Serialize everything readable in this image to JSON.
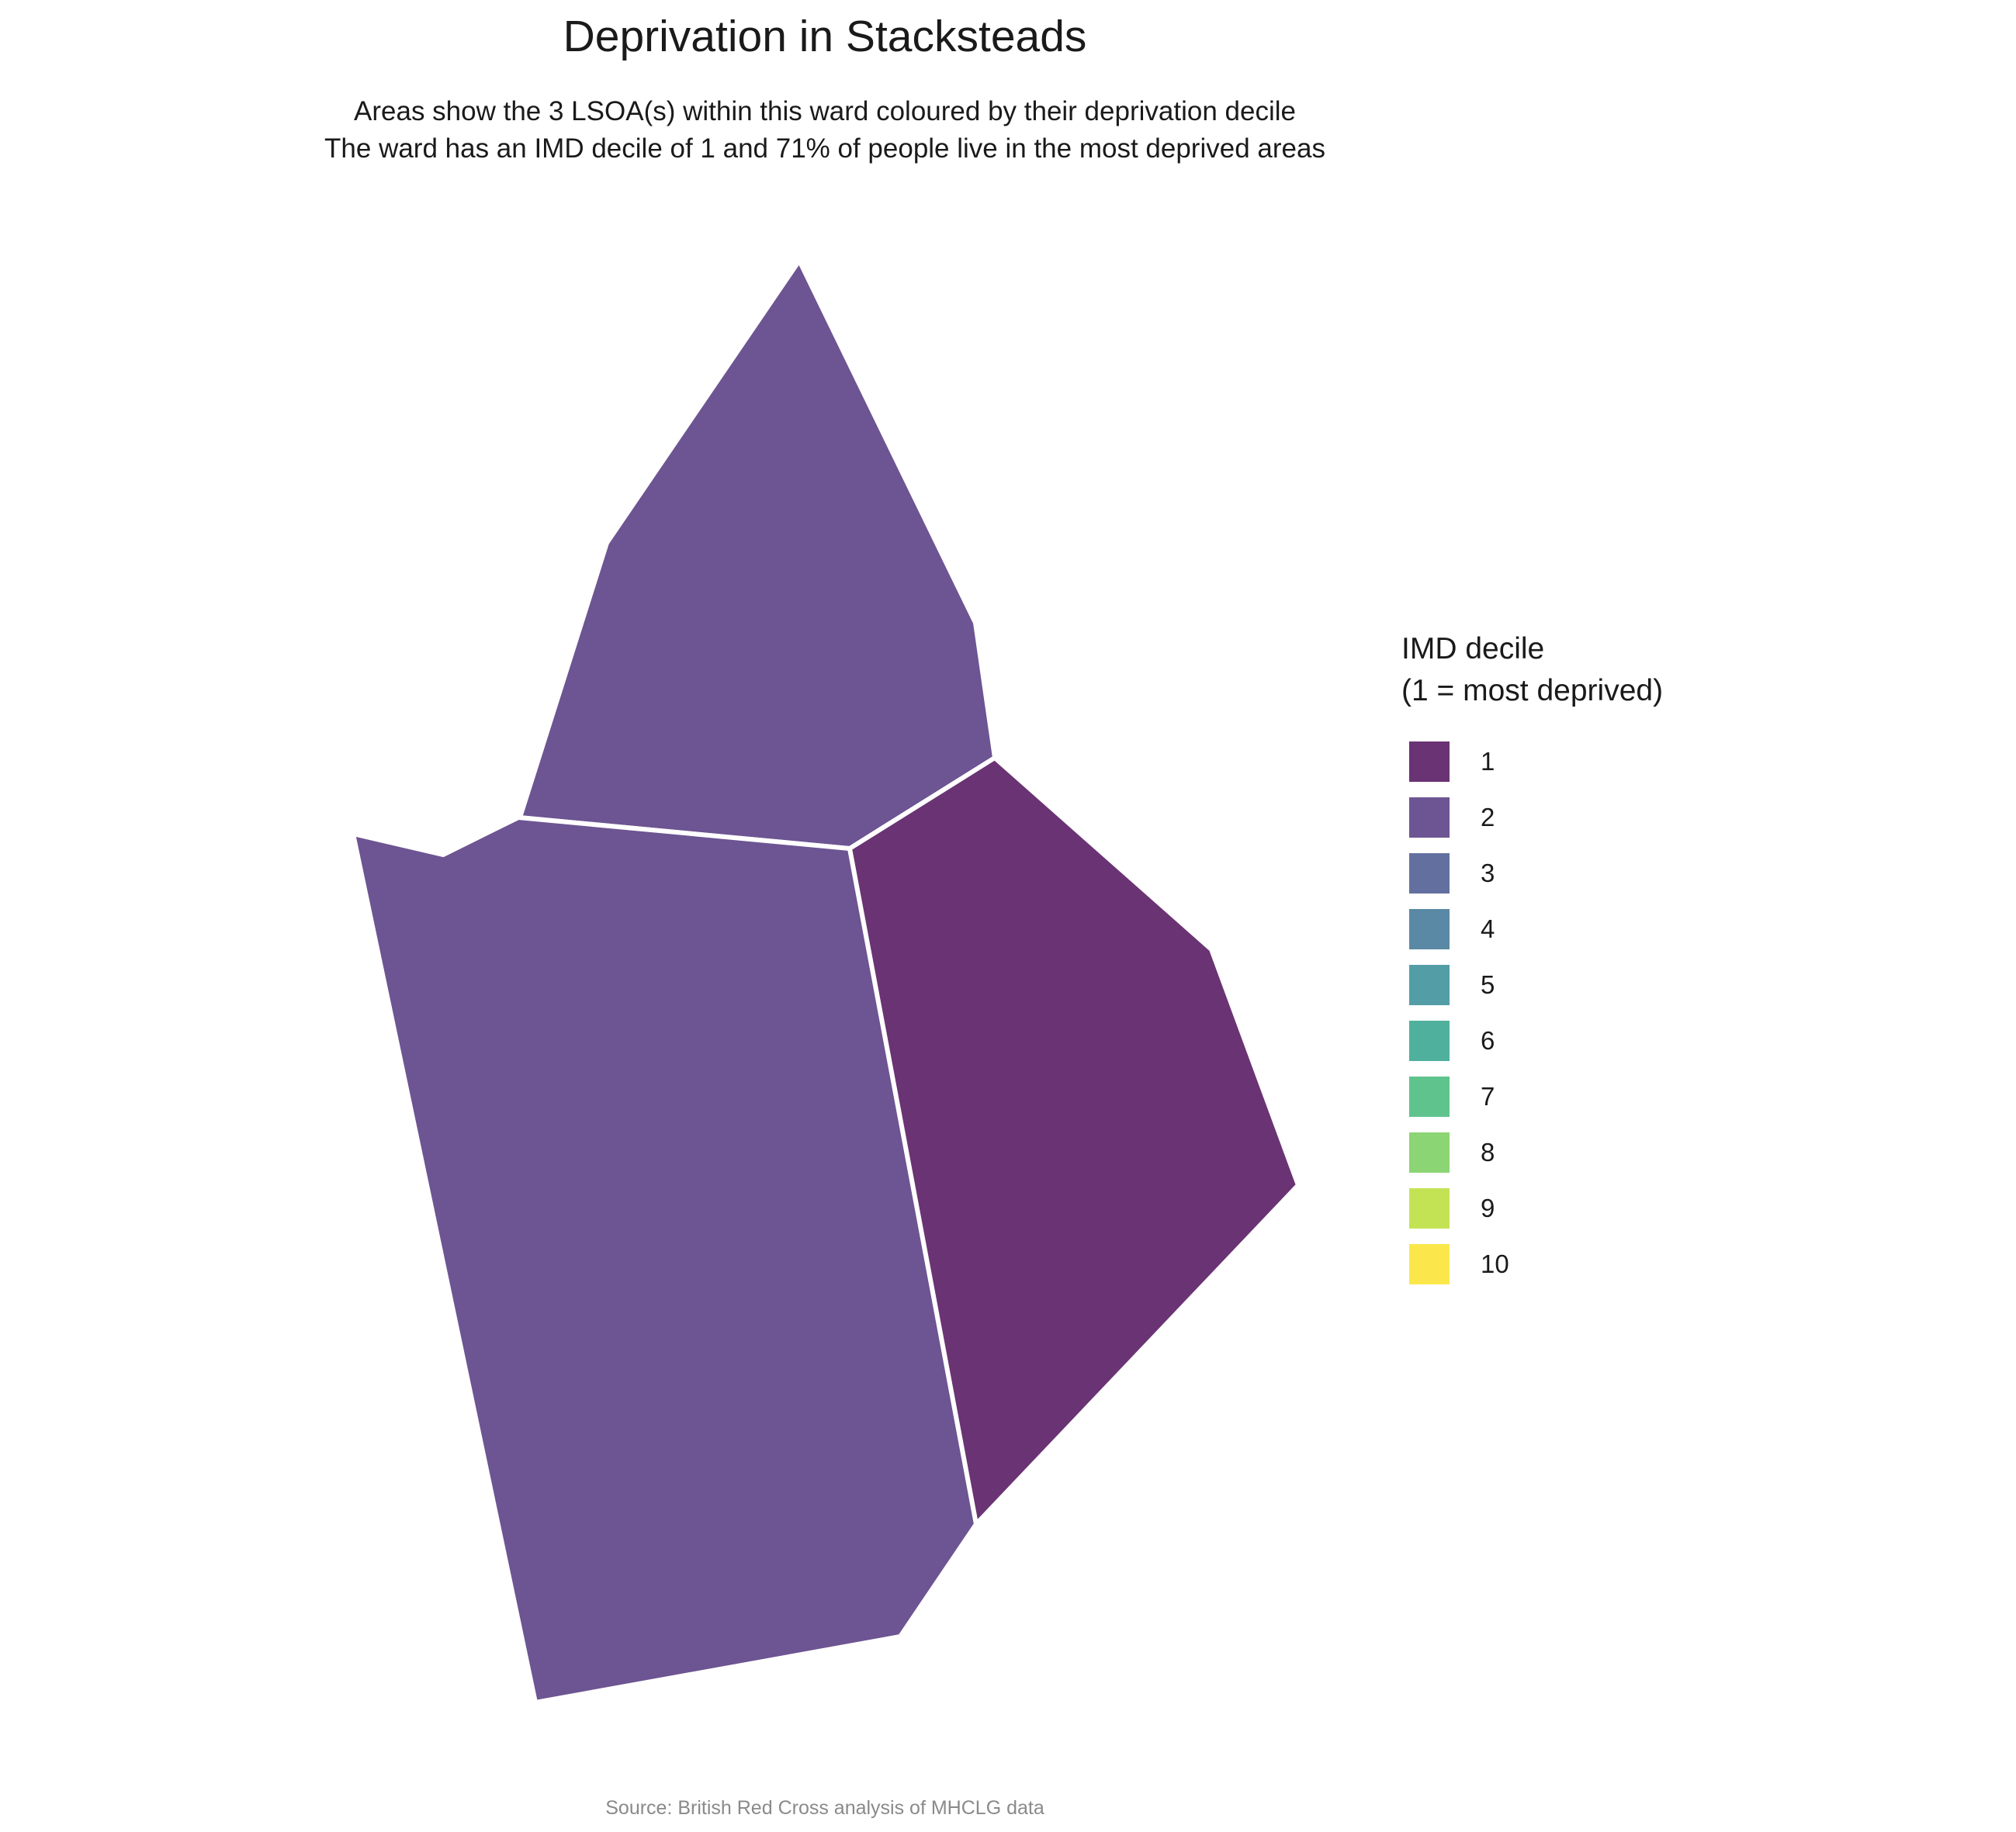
{
  "title": "Deprivation in Stacksteads",
  "subtitle": {
    "line1": "Areas show the 3 LSOA(s) within this ward coloured by their deprivation decile",
    "line2": "The ward has an IMD decile of 1 and 71% of people live in the most deprived areas"
  },
  "legend": {
    "title_line1": "IMD decile",
    "title_line2": "(1 = most deprived)",
    "items": [
      {
        "label": "1",
        "color": "#6a3373"
      },
      {
        "label": "2",
        "color": "#6d5492"
      },
      {
        "label": "3",
        "color": "#63709f"
      },
      {
        "label": "4",
        "color": "#5a89a5"
      },
      {
        "label": "5",
        "color": "#539da7"
      },
      {
        "label": "6",
        "color": "#4fb19d"
      },
      {
        "label": "7",
        "color": "#5fc38d"
      },
      {
        "label": "8",
        "color": "#8cd574"
      },
      {
        "label": "9",
        "color": "#c4e354"
      },
      {
        "label": "10",
        "color": "#fbe74c"
      }
    ]
  },
  "map": {
    "areas": [
      {
        "name": "lsoa-north",
        "decile": 2
      },
      {
        "name": "lsoa-southwest",
        "decile": 2
      },
      {
        "name": "lsoa-east",
        "decile": 1
      }
    ]
  },
  "source": "Source: British Red Cross analysis of MHCLG data"
}
